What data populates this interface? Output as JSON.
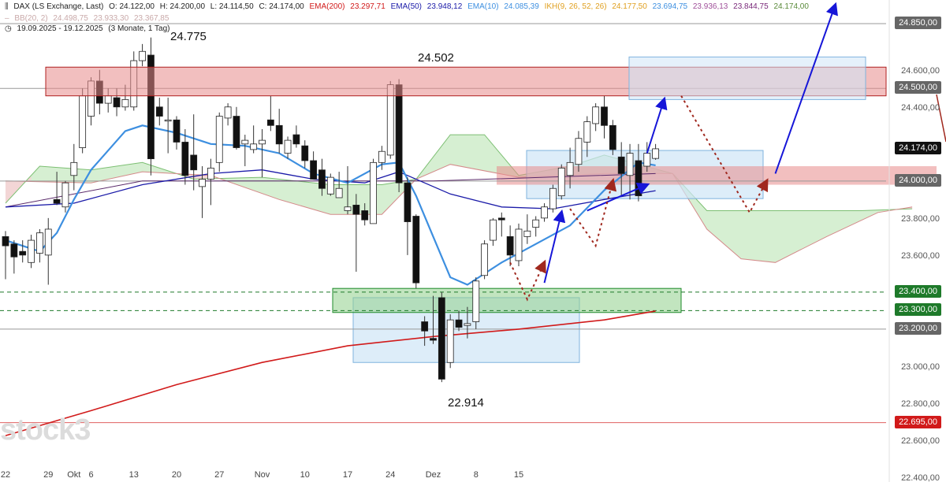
{
  "header": {
    "symbol": "DAX (LS Exchange, Last)",
    "open": "O: 24.122,00",
    "high": "H: 24.200,00",
    "low": "L: 24.114,50",
    "close": "C: 24.174,00",
    "ema200_label": "EMA(200)",
    "ema200_value": "23.297,71",
    "ema50_label": "EMA(50)",
    "ema50_value": "23.948,12",
    "ema10_label": "EMA(10)",
    "ema10_value": "24.085,39",
    "ikh_label": "IKH(9, 26, 52, 26)",
    "ikh_v1": "24.177,50",
    "ikh_v2": "23.694,75",
    "ikh_v3": "23.936,13",
    "ikh_v4": "23.844,75",
    "ikh_v5": "24.174,00",
    "bb_label": "BB(20, 2)",
    "bb_v1": "24.498,75",
    "bb_v2": "23.933,30",
    "bb_v3": "23.367,85",
    "range": "19.09.2025 - 19.12.2025",
    "period": "(3 Monate, 1 Tag)"
  },
  "annotations": {
    "high_label": "24.775",
    "resistance_label": "24.502",
    "low_label": "22.914"
  },
  "watermark": "stock3",
  "colors": {
    "ema200": "#d11a1a",
    "ema50": "#1a1aa8",
    "ema10": "#3d8fe0",
    "ikh": "#e0a020",
    "bullish_candle": "#ffffff",
    "bearish_candle": "#111111",
    "resistance_zone": "#e88a8a",
    "support_zone": "#8fd08a",
    "target_box": "#cfe5f7",
    "kumo_bull": "#d6efd2",
    "kumo_bear": "#f3d6d6",
    "arrow_blue": "#1616d8",
    "arrow_red_dotted": "#a0281e"
  },
  "price_tags": [
    {
      "label": "24.850,00",
      "bg": "#666666"
    },
    {
      "label": "24.500,00",
      "bg": "#666666"
    },
    {
      "label": "24.174,00",
      "bg": "#111111"
    },
    {
      "label": "24.000,00",
      "bg": "#666666"
    },
    {
      "label": "23.400,00",
      "bg": "#1e7a2a"
    },
    {
      "label": "23.300,00",
      "bg": "#1e7a2a"
    },
    {
      "label": "23.200,00",
      "bg": "#666666"
    },
    {
      "label": "22.695,00",
      "bg": "#d11a1a"
    }
  ],
  "chart_data": {
    "type": "candlestick",
    "title": "DAX (LS Exchange, Last)",
    "period": "19.09.2025 - 19.12.2025",
    "ylim": [
      22400,
      24950
    ],
    "y_ticks": [
      "24.600,00",
      "24.400,00",
      "23.800,00",
      "23.600,00",
      "23.000,00",
      "22.800,00",
      "22.600,00",
      "22.400,00"
    ],
    "y_tick_values": [
      24600,
      24400,
      23800,
      23600,
      23000,
      22800,
      22600,
      22400
    ],
    "x_ticks": [
      "22",
      "29",
      "Okt",
      "6",
      "13",
      "20",
      "27",
      "Nov",
      "10",
      "17",
      "24",
      "Dez",
      "8",
      "15"
    ],
    "x_tick_index": [
      0,
      5,
      8,
      10,
      15,
      20,
      25,
      30,
      35,
      40,
      45,
      50,
      55,
      60
    ],
    "horizontal_levels": [
      24850,
      24500,
      24000,
      23400,
      23300,
      23200,
      22695
    ],
    "zones": {
      "resistance_upper": [
        24460,
        24615
      ],
      "resistance_mid": [
        23980,
        24080
      ],
      "support": [
        23290,
        23420
      ],
      "target_upper": [
        24440,
        24670
      ],
      "target_mid": [
        23905,
        24165
      ],
      "target_lower": [
        23020,
        23370
      ]
    },
    "candles": [
      {
        "o": 23700,
        "h": 23730,
        "l": 23470,
        "c": 23650
      },
      {
        "o": 23660,
        "h": 23680,
        "l": 23500,
        "c": 23590
      },
      {
        "o": 23620,
        "h": 23680,
        "l": 23560,
        "c": 23600
      },
      {
        "o": 23560,
        "h": 23710,
        "l": 23530,
        "c": 23680
      },
      {
        "o": 23610,
        "h": 23740,
        "l": 23560,
        "c": 23720
      },
      {
        "o": 23600,
        "h": 23800,
        "l": 23440,
        "c": 23740
      },
      {
        "o": 23900,
        "h": 24050,
        "l": 23870,
        "c": 23880
      },
      {
        "o": 23860,
        "h": 24000,
        "l": 23830,
        "c": 23990
      },
      {
        "o": 24030,
        "h": 24200,
        "l": 23950,
        "c": 24100
      },
      {
        "o": 24180,
        "h": 24500,
        "l": 24150,
        "c": 24460
      },
      {
        "o": 24350,
        "h": 24560,
        "l": 24300,
        "c": 24540
      },
      {
        "o": 24540,
        "h": 24600,
        "l": 24360,
        "c": 24420
      },
      {
        "o": 24420,
        "h": 24500,
        "l": 24370,
        "c": 24460
      },
      {
        "o": 24450,
        "h": 24500,
        "l": 24350,
        "c": 24400
      },
      {
        "o": 24400,
        "h": 24520,
        "l": 24380,
        "c": 24440
      },
      {
        "o": 24400,
        "h": 24700,
        "l": 24380,
        "c": 24650
      },
      {
        "o": 24650,
        "h": 24740,
        "l": 24620,
        "c": 24700
      },
      {
        "o": 24680,
        "h": 24775,
        "l": 24030,
        "c": 24120
      },
      {
        "o": 24400,
        "h": 24450,
        "l": 24300,
        "c": 24350
      },
      {
        "o": 24330,
        "h": 24450,
        "l": 24150,
        "c": 24330
      },
      {
        "o": 24330,
        "h": 24350,
        "l": 24170,
        "c": 24210
      },
      {
        "o": 24210,
        "h": 24280,
        "l": 23980,
        "c": 24030
      },
      {
        "o": 24140,
        "h": 24360,
        "l": 23950,
        "c": 24060
      },
      {
        "o": 23970,
        "h": 24080,
        "l": 23800,
        "c": 24010
      },
      {
        "o": 24010,
        "h": 24120,
        "l": 23870,
        "c": 24070
      },
      {
        "o": 24100,
        "h": 24370,
        "l": 24050,
        "c": 24350
      },
      {
        "o": 24340,
        "h": 24420,
        "l": 24300,
        "c": 24400
      },
      {
        "o": 24350,
        "h": 24400,
        "l": 24170,
        "c": 24180
      },
      {
        "o": 24200,
        "h": 24250,
        "l": 24080,
        "c": 24220
      },
      {
        "o": 24170,
        "h": 24300,
        "l": 24150,
        "c": 24200
      },
      {
        "o": 24200,
        "h": 24280,
        "l": 24020,
        "c": 24220
      },
      {
        "o": 24330,
        "h": 24460,
        "l": 24270,
        "c": 24300
      },
      {
        "o": 24300,
        "h": 24390,
        "l": 24150,
        "c": 24200
      },
      {
        "o": 24150,
        "h": 24240,
        "l": 24120,
        "c": 24220
      },
      {
        "o": 24250,
        "h": 24300,
        "l": 24180,
        "c": 24200
      },
      {
        "o": 24190,
        "h": 24220,
        "l": 24070,
        "c": 24110
      },
      {
        "o": 24110,
        "h": 24160,
        "l": 24010,
        "c": 24010
      },
      {
        "o": 24060,
        "h": 24120,
        "l": 23920,
        "c": 23960
      },
      {
        "o": 23930,
        "h": 24040,
        "l": 23920,
        "c": 24020
      },
      {
        "o": 23910,
        "h": 24050,
        "l": 23920,
        "c": 23960
      },
      {
        "o": 23840,
        "h": 24080,
        "l": 23820,
        "c": 23860
      },
      {
        "o": 23870,
        "h": 23930,
        "l": 23510,
        "c": 23820
      },
      {
        "o": 23840,
        "h": 23880,
        "l": 23760,
        "c": 23790
      },
      {
        "o": 23770,
        "h": 24120,
        "l": 23770,
        "c": 24100
      },
      {
        "o": 24100,
        "h": 24190,
        "l": 24060,
        "c": 24160
      },
      {
        "o": 24140,
        "h": 24540,
        "l": 24120,
        "c": 24520
      },
      {
        "o": 24520,
        "h": 24550,
        "l": 23940,
        "c": 23990
      },
      {
        "o": 23990,
        "h": 24020,
        "l": 23600,
        "c": 23780
      },
      {
        "o": 23810,
        "h": 23820,
        "l": 23420,
        "c": 23450
      },
      {
        "o": 23240,
        "h": 23270,
        "l": 23110,
        "c": 23190
      },
      {
        "o": 23150,
        "h": 23380,
        "l": 23120,
        "c": 23140
      },
      {
        "o": 23370,
        "h": 23400,
        "l": 22914,
        "c": 22930
      },
      {
        "o": 23020,
        "h": 23280,
        "l": 22990,
        "c": 23250
      },
      {
        "o": 23250,
        "h": 23300,
        "l": 23190,
        "c": 23210
      },
      {
        "o": 23220,
        "h": 23320,
        "l": 23150,
        "c": 23230
      },
      {
        "o": 23240,
        "h": 23480,
        "l": 23200,
        "c": 23460
      },
      {
        "o": 23490,
        "h": 23680,
        "l": 23470,
        "c": 23660
      },
      {
        "o": 23680,
        "h": 23800,
        "l": 23650,
        "c": 23790
      },
      {
        "o": 23800,
        "h": 23830,
        "l": 23700,
        "c": 23790
      },
      {
        "o": 23700,
        "h": 23760,
        "l": 23540,
        "c": 23600
      },
      {
        "o": 23570,
        "h": 23770,
        "l": 23540,
        "c": 23740
      },
      {
        "o": 23700,
        "h": 23820,
        "l": 23660,
        "c": 23730
      },
      {
        "o": 23750,
        "h": 23810,
        "l": 23700,
        "c": 23790
      },
      {
        "o": 23800,
        "h": 23880,
        "l": 23780,
        "c": 23860
      },
      {
        "o": 23850,
        "h": 23980,
        "l": 23830,
        "c": 23960
      },
      {
        "o": 23920,
        "h": 24090,
        "l": 23900,
        "c": 24070
      },
      {
        "o": 24030,
        "h": 24180,
        "l": 23960,
        "c": 24100
      },
      {
        "o": 24090,
        "h": 24270,
        "l": 24050,
        "c": 24230
      },
      {
        "o": 24210,
        "h": 24350,
        "l": 24130,
        "c": 24320
      },
      {
        "o": 24310,
        "h": 24420,
        "l": 24270,
        "c": 24400
      },
      {
        "o": 24400,
        "h": 24460,
        "l": 24230,
        "c": 24300
      },
      {
        "o": 24300,
        "h": 24330,
        "l": 24140,
        "c": 24170
      },
      {
        "o": 24130,
        "h": 24210,
        "l": 23920,
        "c": 24040
      },
      {
        "o": 24030,
        "h": 24200,
        "l": 23900,
        "c": 24150
      },
      {
        "o": 24110,
        "h": 24200,
        "l": 23890,
        "c": 23920
      },
      {
        "o": 24080,
        "h": 24210,
        "l": 24050,
        "c": 24150
      },
      {
        "o": 24122,
        "h": 24200,
        "l": 24114.5,
        "c": 24174
      }
    ],
    "ema200": [
      [
        0,
        22625
      ],
      [
        10,
        22760
      ],
      [
        20,
        22900
      ],
      [
        30,
        23020
      ],
      [
        40,
        23110
      ],
      [
        50,
        23160
      ],
      [
        60,
        23200
      ],
      [
        70,
        23250
      ],
      [
        76,
        23298
      ]
    ],
    "ema50": [
      [
        0,
        23860
      ],
      [
        8,
        23880
      ],
      [
        16,
        23980
      ],
      [
        24,
        24040
      ],
      [
        30,
        24060
      ],
      [
        36,
        24010
      ],
      [
        42,
        23990
      ],
      [
        46,
        24050
      ],
      [
        52,
        23930
      ],
      [
        58,
        23860
      ],
      [
        64,
        23850
      ],
      [
        70,
        23900
      ],
      [
        76,
        23948
      ]
    ],
    "ema10": [
      [
        0,
        23680
      ],
      [
        4,
        23620
      ],
      [
        6,
        23720
      ],
      [
        8,
        23900
      ],
      [
        10,
        24060
      ],
      [
        14,
        24270
      ],
      [
        16,
        24300
      ],
      [
        20,
        24260
      ],
      [
        24,
        24200
      ],
      [
        28,
        24190
      ],
      [
        32,
        24150
      ],
      [
        36,
        24040
      ],
      [
        40,
        23990
      ],
      [
        44,
        24090
      ],
      [
        46,
        24100
      ],
      [
        48,
        23920
      ],
      [
        50,
        23700
      ],
      [
        52,
        23480
      ],
      [
        54,
        23440
      ],
      [
        58,
        23560
      ],
      [
        62,
        23660
      ],
      [
        66,
        23760
      ],
      [
        70,
        23950
      ],
      [
        74,
        24100
      ],
      [
        76,
        24085
      ]
    ],
    "kumo_span_a": [
      [
        0,
        23880
      ],
      [
        4,
        24080
      ],
      [
        10,
        24060
      ],
      [
        16,
        24100
      ],
      [
        22,
        24010
      ],
      [
        30,
        24020
      ],
      [
        38,
        23980
      ],
      [
        44,
        23980
      ],
      [
        48,
        24010
      ],
      [
        52,
        24250
      ],
      [
        56,
        24250
      ],
      [
        60,
        24030
      ],
      [
        66,
        24080
      ],
      [
        70,
        24140
      ],
      [
        78,
        24040
      ],
      [
        82,
        23840
      ],
      [
        90,
        23840
      ],
      [
        100,
        23840
      ],
      [
        106,
        23850
      ]
    ],
    "kumo_span_b": [
      [
        0,
        24000
      ],
      [
        10,
        23990
      ],
      [
        16,
        24050
      ],
      [
        24,
        24030
      ],
      [
        32,
        23900
      ],
      [
        38,
        23820
      ],
      [
        44,
        23820
      ],
      [
        48,
        24010
      ],
      [
        52,
        24090
      ],
      [
        60,
        24020
      ],
      [
        70,
        24040
      ],
      [
        78,
        24040
      ],
      [
        82,
        23740
      ],
      [
        86,
        23580
      ],
      [
        90,
        23560
      ],
      [
        96,
        23700
      ],
      [
        102,
        23830
      ],
      [
        106,
        23860
      ]
    ],
    "ikh_baseline": [
      [
        0,
        23860
      ],
      [
        16,
        24000
      ],
      [
        50,
        24000
      ],
      [
        76,
        24040
      ]
    ],
    "blue_arrows": [
      {
        "from": [
          63,
          23450
        ],
        "to": [
          65,
          23830
        ]
      },
      {
        "from": [
          68,
          23840
        ],
        "to": [
          75,
          23980
        ]
      },
      {
        "from": [
          75,
          24150
        ],
        "to": [
          77,
          24440
        ]
      },
      {
        "from": [
          90,
          24040
        ],
        "to": [
          97,
          24950
        ]
      }
    ],
    "red_dotted_path": [
      [
        59,
        23560
      ],
      [
        61,
        23360
      ],
      [
        63,
        23560
      ]
    ],
    "red_dotted_path2": [
      [
        66,
        23850
      ],
      [
        69,
        23650
      ],
      [
        71,
        24000
      ]
    ],
    "red_dotted_path3": [
      [
        79,
        24460
      ],
      [
        87,
        23830
      ],
      [
        89,
        24000
      ]
    ]
  }
}
